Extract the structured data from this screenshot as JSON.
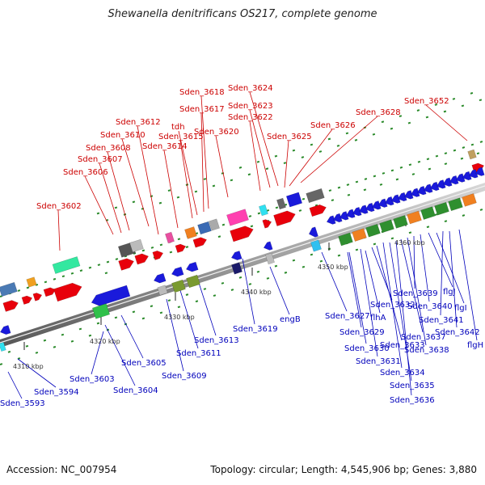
{
  "title": "Shewanella denitrificans OS217, complete genome",
  "footer": {
    "accession": "Accession: NC_007954",
    "summary": "Topology: circular; Length: 4,545,906 bp; Genes: 3,880"
  },
  "scale_labels": [
    "4310 kbp",
    "4320 kbp",
    "4330 kbp",
    "4340 kbp",
    "4350 kbp",
    "4360 kbp"
  ],
  "upper_labels": [
    "Sden_3602",
    "Sden_3606",
    "Sden_3607",
    "Sden_3608",
    "Sden_3610",
    "Sden_3612",
    "Sden_3614",
    "Sden_3615",
    "tdh",
    "Sden_3617",
    "Sden_3618",
    "Sden_3620",
    "Sden_3622",
    "Sden_3623",
    "Sden_3624",
    "Sden_3625",
    "Sden_3626",
    "Sden_3628",
    "Sden_3652"
  ],
  "lower_labels": [
    "Sden_3593",
    "Sden_3594",
    "Sden_3603",
    "Sden_3604",
    "Sden_3605",
    "Sden_3609",
    "Sden_3611",
    "Sden_3613",
    "Sden_3619",
    "engB",
    "Sden_3627",
    "Sden_3629",
    "Sden_3630",
    "Sden_3631",
    "flhA",
    "Sden_3632",
    "Sden_3633",
    "Sden_3634",
    "Sden_3635",
    "Sden_3636",
    "Sden_3637",
    "Sden_3638",
    "Sden_3639",
    "Sden_3640",
    "flgJ",
    "flgI",
    "Sden_3641",
    "Sden_3642",
    "flgH"
  ],
  "colors": {
    "forward_gene": "#e8000b",
    "reverse_gene": "#1a1adb",
    "label_forward": "#cc0000",
    "label_reverse": "#0000bb",
    "backbone": "#8a8a8a"
  }
}
